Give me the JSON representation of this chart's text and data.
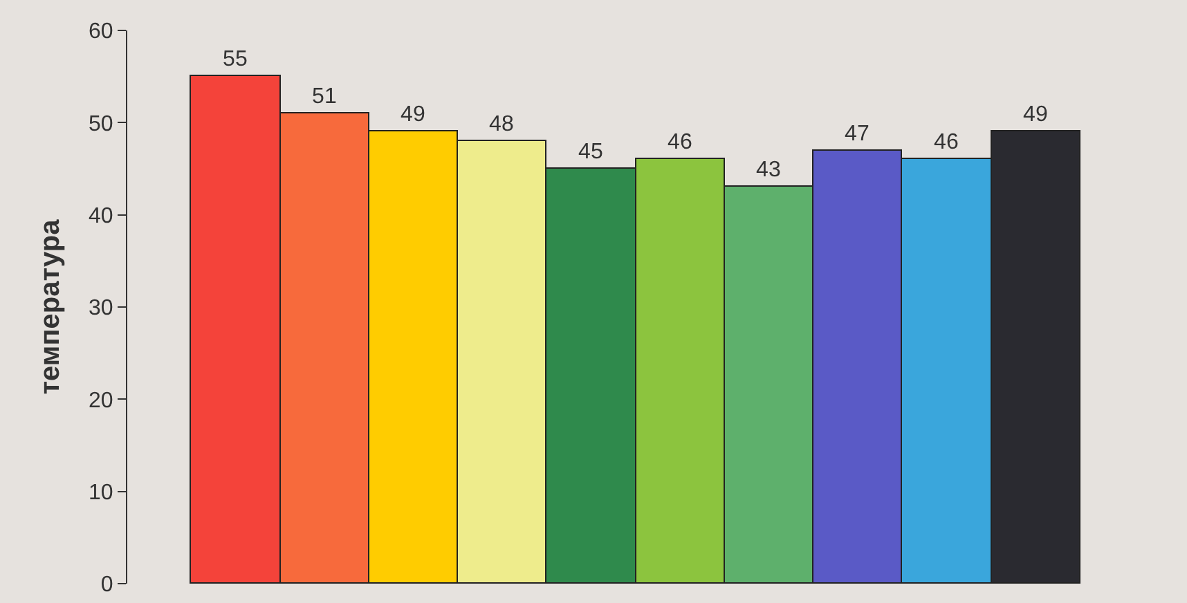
{
  "chart_data": {
    "type": "bar",
    "categories": [
      null,
      null,
      null,
      null,
      null,
      null,
      null,
      null,
      null,
      null
    ],
    "values": [
      55,
      51,
      49,
      48,
      45,
      46,
      43,
      47,
      46,
      49
    ],
    "colors": [
      "#f4433a",
      "#f76a3c",
      "#ffcc00",
      "#eeec8c",
      "#2f8a4c",
      "#8cc43e",
      "#5eb06c",
      "#5a5ac6",
      "#3aa6dc",
      "#2a2a30"
    ],
    "ylabel": "температура",
    "ylim": [
      0,
      60
    ],
    "yticks": [
      0,
      10,
      20,
      30,
      40,
      50,
      60
    ],
    "data_labels": true
  }
}
